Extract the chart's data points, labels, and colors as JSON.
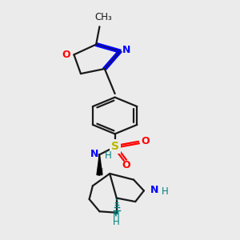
{
  "bg_color": "#ebebeb",
  "figsize": [
    3.0,
    3.0
  ],
  "dpi": 100,
  "bond_color": "#1a1a1a",
  "N_color": "#0000ff",
  "O_color": "#ff0000",
  "S_color": "#b8b800",
  "NH_color": "#008080",
  "methyl_text": "CH₃",
  "lw": 1.6,
  "xlim": [
    0.05,
    0.75
  ],
  "ylim": [
    0.02,
    1.0
  ]
}
